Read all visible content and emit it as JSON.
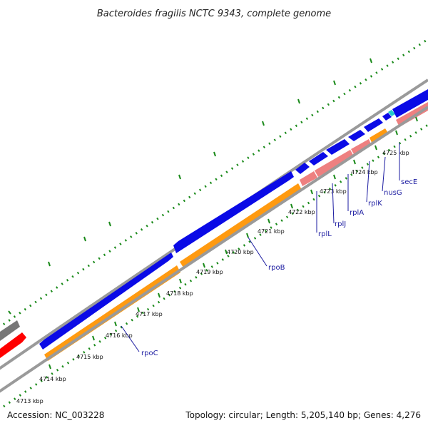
{
  "title": "Bacteroides fragilis NCTC 9343, complete genome",
  "footer": {
    "accession": "Accession: NC_003228",
    "topology": "Topology: circular; Length: 5,205,140 bp; Genes: 4,276"
  },
  "kbp_labels": [
    "4713 kbp",
    "4714 kbp",
    "4715 kbp",
    "4716 kbp",
    "4717 kbp",
    "4718 kbp",
    "4719 kbp",
    "4720 kbp",
    "4721 kbp",
    "4722 kbp",
    "4723 kbp",
    "4724 kbp",
    "4725 kbp"
  ],
  "genes": [
    {
      "name": "rpoC"
    },
    {
      "name": "rpoB"
    },
    {
      "name": "rplL"
    },
    {
      "name": "rplJ"
    },
    {
      "name": "rplA"
    },
    {
      "name": "rplK"
    },
    {
      "name": "nusG"
    },
    {
      "name": "secE"
    }
  ],
  "colors": {
    "forward_cds": "#0a0ae6",
    "reverse_cds": "#ff9a10",
    "rrna_like": "#ee8080",
    "backbone": "#8c8c8c",
    "gc_dots": "#1a8a1a",
    "other_red": "#ff0000",
    "other_grey": "#777777",
    "small_cyan": "#22cccc"
  }
}
